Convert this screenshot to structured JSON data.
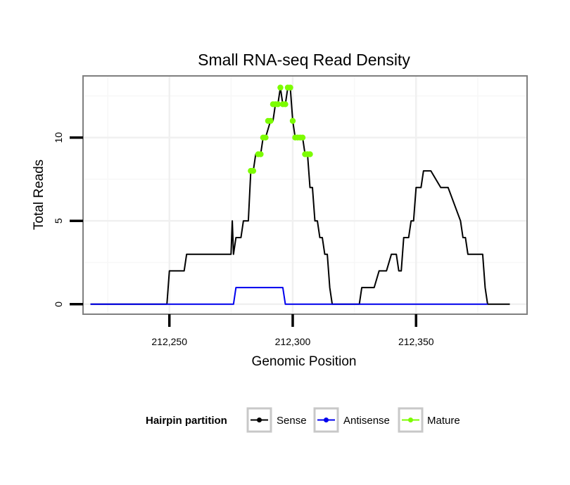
{
  "chart_data": {
    "type": "line",
    "title": "Small RNA-seq Read Density",
    "xlabel": "Genomic Position",
    "ylabel": "Total Reads",
    "xlim": [
      212215,
      212395
    ],
    "ylim": [
      -0.6,
      13.7
    ],
    "x_ticks": [
      {
        "value": 212250,
        "label": "212,250"
      },
      {
        "value": 212300,
        "label": "212,300"
      },
      {
        "value": 212350,
        "label": "212,350"
      }
    ],
    "y_ticks": [
      {
        "value": 0,
        "label": "0"
      },
      {
        "value": 5,
        "label": "5"
      },
      {
        "value": 10,
        "label": "10"
      }
    ],
    "legend": {
      "title": "Hairpin partition",
      "position": "bottom",
      "entries": [
        "Sense",
        "Antisense",
        "Mature"
      ]
    },
    "series": [
      {
        "name": "Sense",
        "color": "#000000",
        "x": [
          212218,
          212249,
          212250,
          212256,
          212257,
          212262,
          212263,
          212275,
          212275.5,
          212276,
          212277,
          212279,
          212280,
          212282,
          212283,
          212284,
          212285,
          212286,
          212287,
          212288,
          212289,
          212291,
          212292,
          212293,
          212294,
          212295,
          212296,
          212297,
          212298,
          212299,
          212300,
          212301,
          212302,
          212303,
          212304,
          212305,
          212306,
          212307,
          212308,
          212309,
          212310,
          212311,
          212312,
          212313,
          212314,
          212315,
          212316,
          212317,
          212318,
          212319,
          212320,
          212321,
          212327,
          212328,
          212330,
          212332,
          212333,
          212335,
          212337,
          212338,
          212340,
          212342,
          212343,
          212344,
          212345,
          212346,
          212347,
          212348,
          212349,
          212350,
          212351,
          212352,
          212353,
          212355,
          212356,
          212360,
          212361,
          212362,
          212363,
          212368,
          212369,
          212370,
          212371,
          212372,
          212373,
          212374,
          212377,
          212378,
          212379,
          212388
        ],
        "y": [
          0,
          0,
          2,
          2,
          3,
          3,
          3,
          3,
          5,
          3,
          4,
          4,
          5,
          5,
          8,
          8,
          9,
          9,
          9,
          10,
          10,
          11,
          11,
          12,
          12,
          13,
          12,
          12,
          13,
          13,
          11,
          10,
          10,
          10,
          10,
          9,
          9,
          7,
          7,
          5,
          5,
          4,
          4,
          3,
          3,
          1,
          0,
          0,
          0,
          0,
          0,
          0,
          0,
          1,
          1,
          1,
          1,
          2,
          2,
          2,
          3,
          3,
          2,
          2,
          4,
          4,
          4,
          5,
          5,
          7,
          7,
          7,
          8,
          8,
          8,
          7,
          7,
          7,
          7,
          5,
          4,
          4,
          3,
          3,
          3,
          3,
          3,
          1,
          0,
          0
        ]
      },
      {
        "name": "Antisense",
        "color": "#0000ee",
        "x": [
          212218,
          212276,
          212277,
          212296,
          212297,
          212379
        ],
        "y": [
          0,
          0,
          1,
          1,
          0,
          0
        ]
      },
      {
        "name": "Mature",
        "color": "#7cfc00",
        "x": [
          212283,
          212284,
          212286,
          212287,
          212288,
          212289,
          212290,
          212291,
          212292,
          212293,
          212294,
          212295,
          212296,
          212297,
          212298,
          212299,
          212300,
          212301,
          212302,
          212303,
          212304,
          212305,
          212306,
          212307
        ],
        "y": [
          8,
          8,
          9,
          9,
          10,
          10,
          11,
          11,
          12,
          12,
          12,
          13,
          12,
          12,
          13,
          13,
          11,
          10,
          10,
          10,
          10,
          9,
          9,
          9
        ]
      }
    ]
  }
}
